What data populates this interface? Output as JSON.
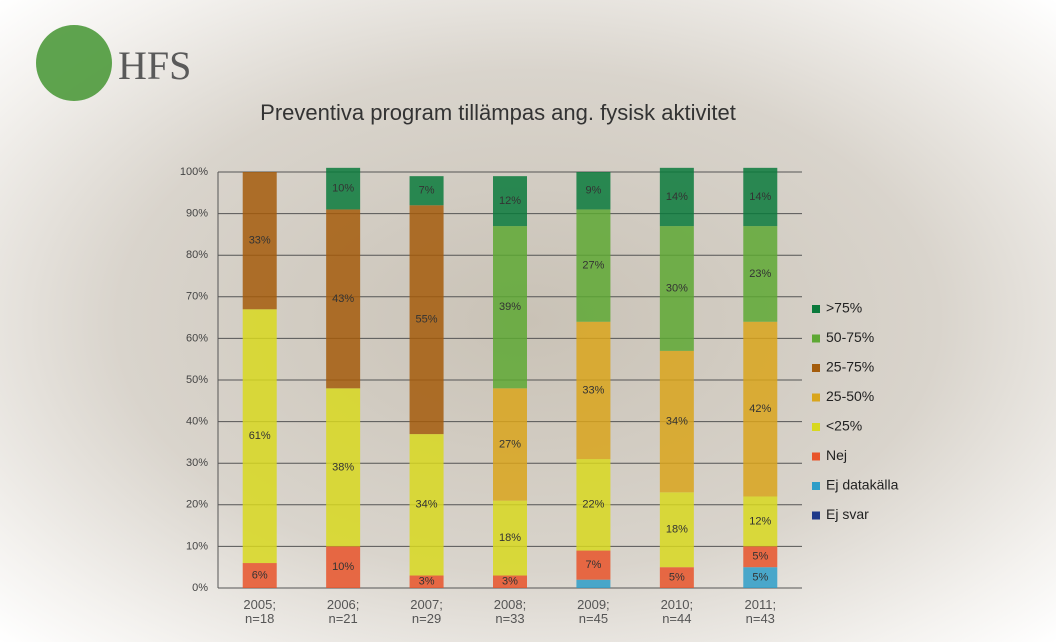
{
  "logo": "HFS",
  "chart_data": {
    "type": "stacked_bar",
    "title": "Preventiva program tillämpas ang. fysisk aktivitet",
    "categories": [
      "2005;\nn=18",
      "2006;\nn=21",
      "2007;\nn=29",
      "2008;\nn=33",
      "2009;\nn=45",
      "2010;\nn=44",
      "2011;\nn=43"
    ],
    "ylim": [
      0,
      100
    ],
    "yticks": [
      {
        "value": 0,
        "label": "0%"
      },
      {
        "value": 10,
        "label": "10%"
      },
      {
        "value": 20,
        "label": "20%"
      },
      {
        "value": 30,
        "label": "30%"
      },
      {
        "value": 40,
        "label": "40%"
      },
      {
        "value": 50,
        "label": "50%"
      },
      {
        "value": 60,
        "label": "60%"
      },
      {
        "value": 70,
        "label": "70%"
      },
      {
        "value": 80,
        "label": "80%"
      },
      {
        "value": 90,
        "label": "90%"
      },
      {
        "value": 100,
        "label": "100%"
      }
    ],
    "grid": true,
    "legend": "right",
    "series": [
      {
        "name": "Ej svar",
        "color": "#1f3a8a",
        "values": [
          null,
          null,
          null,
          null,
          null,
          null,
          null
        ],
        "value_labels": [
          null,
          null,
          null,
          null,
          null,
          null,
          null
        ]
      },
      {
        "name": "Ej datakälla",
        "color": "#2e9dc8",
        "values": [
          null,
          null,
          null,
          null,
          2,
          null,
          5
        ],
        "value_labels": [
          null,
          null,
          null,
          null,
          null,
          null,
          "5%"
        ]
      },
      {
        "name": "Nej",
        "color": "#e8542a",
        "values": [
          6,
          10,
          3,
          3,
          7,
          5,
          5
        ],
        "value_labels": [
          "6%",
          "10%",
          "3%",
          "3%",
          "7%",
          "5%",
          "5%"
        ]
      },
      {
        "name": "<25%",
        "color": "#d8d820",
        "values": [
          61,
          38,
          34,
          18,
          22,
          18,
          12
        ],
        "value_labels": [
          "61%",
          "38%",
          "34%",
          "18%",
          "22%",
          "18%",
          "12%"
        ]
      },
      {
        "name": "25-50%",
        "color": "#d9a51c",
        "values": [
          null,
          null,
          null,
          27,
          33,
          34,
          42
        ],
        "value_labels": [
          null,
          null,
          null,
          "27%",
          "33%",
          "34%",
          "42%"
        ]
      },
      {
        "name": "25-75%",
        "color": "#a45c0c",
        "values": [
          33,
          43,
          55,
          null,
          null,
          null,
          null
        ],
        "value_labels": [
          "33%",
          "43%",
          "55%",
          null,
          null,
          null,
          null
        ]
      },
      {
        "name": "50-75%",
        "color": "#5ea834",
        "values": [
          null,
          null,
          null,
          39,
          27,
          30,
          23
        ],
        "value_labels": [
          null,
          null,
          null,
          "39%",
          "27%",
          "30%",
          "23%"
        ]
      },
      {
        "name": ">75%",
        "color": "#0b7a3c",
        "values": [
          null,
          10,
          7,
          12,
          9,
          14,
          14
        ],
        "value_labels": [
          null,
          "10%",
          "7%",
          "12%",
          "9%",
          "14%",
          "14%"
        ]
      }
    ]
  }
}
